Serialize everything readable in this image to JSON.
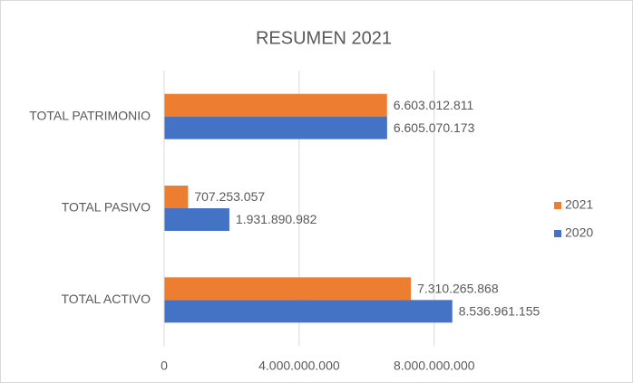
{
  "chart_data": {
    "type": "hbar",
    "title": "RESUMEN 2021",
    "categories": [
      "TOTAL PATRIMONIO",
      "TOTAL PASIVO",
      "TOTAL ACTIVO"
    ],
    "series": [
      {
        "name": "2021",
        "color": "#ed7d31",
        "values": [
          6603012811,
          707253057,
          7310265868
        ],
        "value_labels": [
          "6.603.012.811",
          "707.253.057",
          "7.310.265.868"
        ]
      },
      {
        "name": "2020",
        "color": "#4472c4",
        "values": [
          6605070173,
          1931890982,
          8536961155
        ],
        "value_labels": [
          "6.605.070.173",
          "1.931.890.982",
          "8.536.961.155"
        ]
      }
    ],
    "xlim": [
      0,
      9000000000
    ],
    "xticks": [
      0,
      {
        "value": 4000000000,
        "label": "4.000.000.000"
      },
      {
        "value": 8000000000,
        "label": "8.000.000.000"
      }
    ],
    "grid": true,
    "legend": "right"
  }
}
